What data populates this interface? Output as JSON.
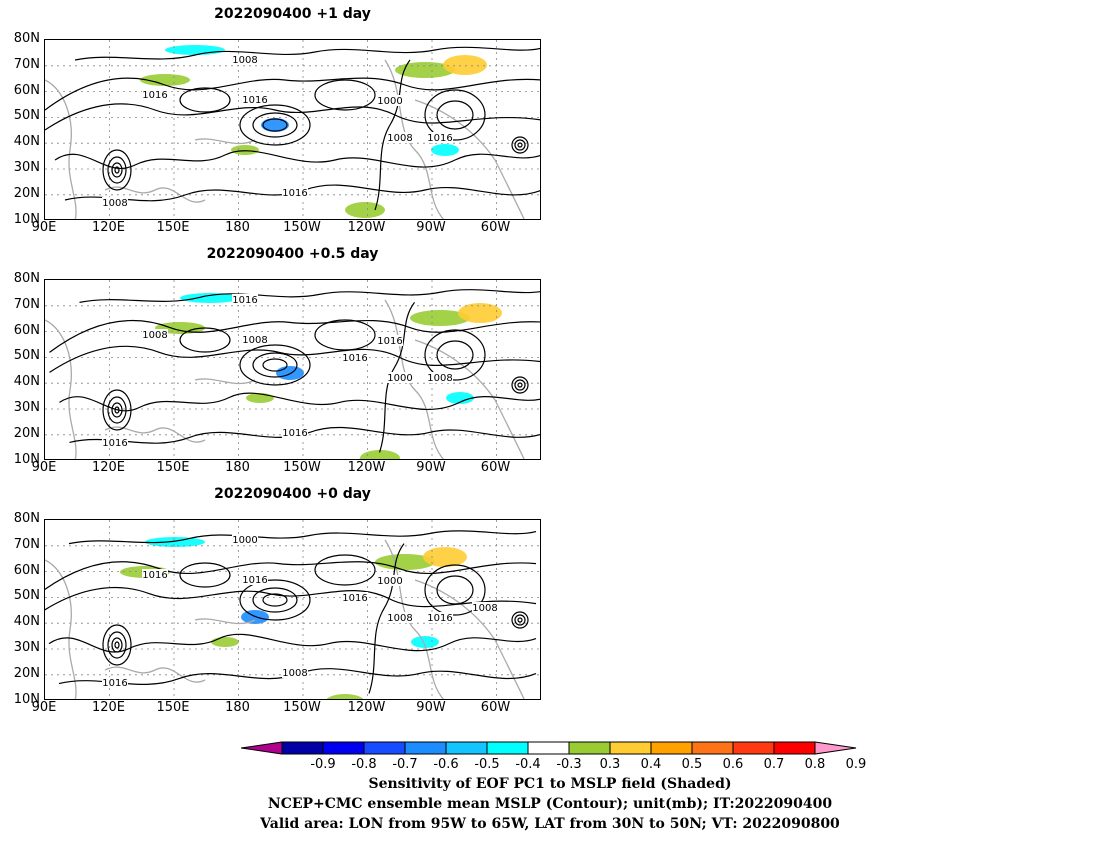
{
  "panels": [
    {
      "title": "2022090400  +1 day",
      "contour_labels": [
        "1008",
        "1016",
        "1016",
        "1000",
        "1008",
        "1016",
        "1016",
        "1008"
      ]
    },
    {
      "title": "2022090400  +0.5 day",
      "contour_labels": [
        "1016",
        "1008",
        "1008",
        "1016",
        "1000",
        "1008",
        "1016",
        "1016",
        "1016"
      ]
    },
    {
      "title": "2022090400  +0 day",
      "contour_labels": [
        "1000",
        "1016",
        "1016",
        "1000",
        "1008",
        "1016",
        "1008",
        "1016",
        "1016",
        "1008"
      ]
    }
  ],
  "lat_ticks": [
    "80N",
    "70N",
    "60N",
    "50N",
    "40N",
    "30N",
    "20N",
    "10N"
  ],
  "lon_ticks": [
    "90E",
    "120E",
    "150E",
    "180",
    "150W",
    "120W",
    "90W",
    "60W"
  ],
  "colorbar": {
    "colors": [
      "#b0008e",
      "#0000a6",
      "#0000f0",
      "#1a4cff",
      "#1c8cff",
      "#14c4ff",
      "#00ffff",
      "#ffffff",
      "#99cc33",
      "#ffcc33",
      "#ffa200",
      "#ff7318",
      "#ff3a12",
      "#ff0000",
      "#ff99cc"
    ],
    "labels": [
      "-0.9",
      "-0.8",
      "-0.7",
      "-0.6",
      "-0.5",
      "-0.4",
      "-0.3",
      "0.3",
      "0.4",
      "0.5",
      "0.6",
      "0.7",
      "0.8",
      "0.9"
    ]
  },
  "caption": {
    "line1": "Sensitivity of EOF PC1 to MSLP field (Shaded)",
    "line2": "NCEP+CMC ensemble mean MSLP (Contour); unit(mb); IT:2022090400",
    "line3": "Valid area: LON from 95W to 65W, LAT from 30N to 50N; VT: 2022090800"
  }
}
